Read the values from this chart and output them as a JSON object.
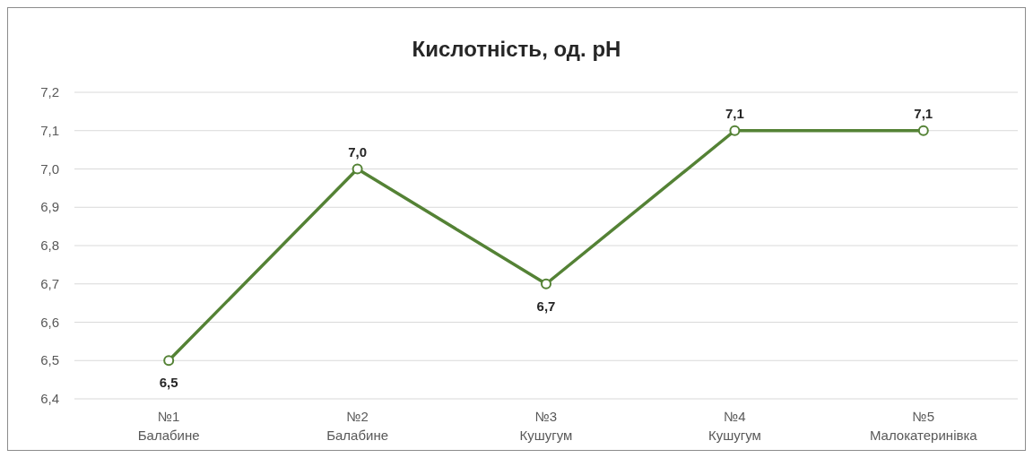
{
  "chart_data": {
    "type": "line",
    "title": "Кислотність, од. pH",
    "categories": [
      "№1\nБалабине",
      "№2\nБалабине",
      "№3\nКушугум",
      "№4\nКушугум",
      "№5\nМалокатеринівка"
    ],
    "series": [
      {
        "color": "#548235",
        "values": [
          6.5,
          7.0,
          6.7,
          7.1,
          7.1
        ],
        "value_labels": [
          "6,5",
          "7,0",
          "6,7",
          "7,1",
          "7,1"
        ]
      }
    ],
    "ylim": [
      6.4,
      7.2
    ],
    "yticks": [
      {
        "value": 6.4,
        "label": "6,4"
      },
      {
        "value": 6.5,
        "label": "6,5"
      },
      {
        "value": 6.6,
        "label": "6,6"
      },
      {
        "value": 6.7,
        "label": "6,7"
      },
      {
        "value": 6.8,
        "label": "6,8"
      },
      {
        "value": 6.9,
        "label": "6,9"
      },
      {
        "value": 7.0,
        "label": "7,0"
      },
      {
        "value": 7.1,
        "label": "7,1"
      },
      {
        "value": 7.2,
        "label": "7,2"
      }
    ],
    "grid": "y",
    "marker": "circle",
    "line_style": "solid"
  }
}
